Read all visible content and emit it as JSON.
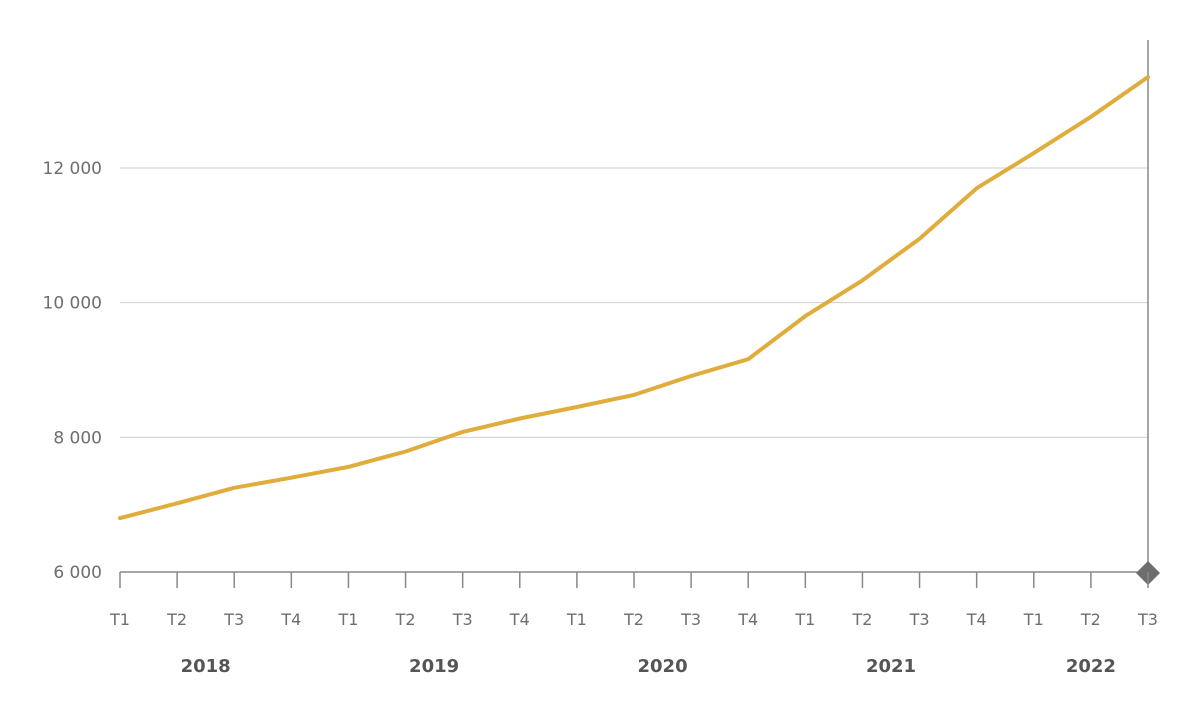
{
  "chart_data": {
    "type": "line",
    "x": [
      "T1",
      "T2",
      "T3",
      "T4",
      "T1",
      "T2",
      "T3",
      "T4",
      "T1",
      "T2",
      "T3",
      "T4",
      "T1",
      "T2",
      "T3",
      "T4",
      "T1",
      "T2",
      "T3"
    ],
    "years": [
      "2018",
      "2019",
      "2020",
      "2021",
      "2022"
    ],
    "series": [
      {
        "values": [
          6800,
          7020,
          7250,
          7400,
          7560,
          7790,
          8080,
          8280,
          8450,
          8630,
          8910,
          9160,
          9800,
          10330,
          10950,
          11700,
          12220,
          12760,
          13350
        ]
      }
    ],
    "y_ticks": [
      "6 000",
      "8 000",
      "10 000",
      "12 000"
    ],
    "ylim": [
      6000,
      13900
    ],
    "grid": true,
    "colors": {
      "series": "#e0ac3c",
      "axis": "#888888",
      "marker": "#6e6e6e"
    }
  }
}
